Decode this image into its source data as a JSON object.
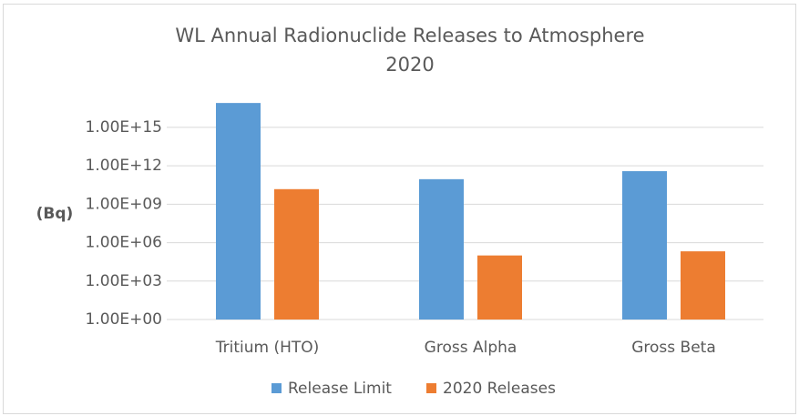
{
  "chart_data": {
    "type": "bar",
    "title": [
      "WL Annual Radionuclide Releases to Atmosphere",
      "2020"
    ],
    "y_label": "(Bq)",
    "categories": [
      "Tritium (HTO)",
      "Gross Alpha",
      "Gross Beta"
    ],
    "series": [
      {
        "name": "Release Limit",
        "color": "#5b9bd5",
        "values": [
          8e+16,
          90000000000.0,
          380000000000.0
        ]
      },
      {
        "name": "2020 Releases",
        "color": "#ed7d31",
        "values": [
          15000000000.0,
          100000.0,
          210000.0
        ]
      }
    ],
    "log_scale": true,
    "ylim": [
      1,
      1e+18
    ],
    "yticks": [
      {
        "value": 1,
        "label": "1.00E+00"
      },
      {
        "value": 1000,
        "label": "1.00E+03"
      },
      {
        "value": 1000000,
        "label": "1.00E+06"
      },
      {
        "value": 1000000000,
        "label": "1.00E+09"
      },
      {
        "value": 1000000000000,
        "label": "1.00E+12"
      },
      {
        "value": 1000000000000000,
        "label": "1.00E+15"
      }
    ],
    "grid": true,
    "legend": "bottom"
  }
}
